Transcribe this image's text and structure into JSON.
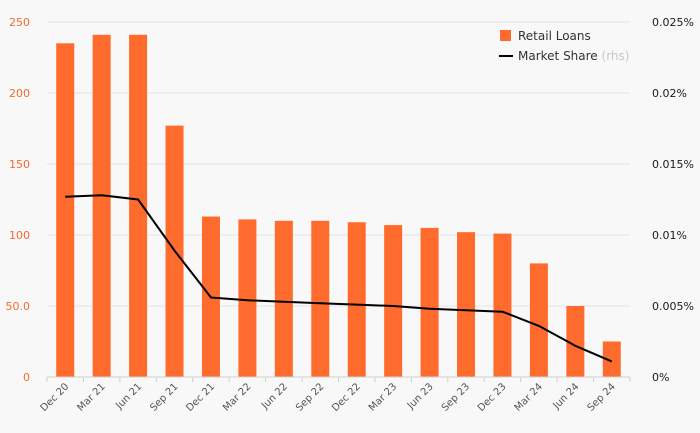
{
  "chart_data": {
    "type": "bar",
    "categories": [
      "Dec 20",
      "Mar 21",
      "Jun 21",
      "Sep 21",
      "Dec 21",
      "Mar 22",
      "Jun 22",
      "Sep 22",
      "Dec 22",
      "Mar 23",
      "Jun 23",
      "Sep 23",
      "Dec 23",
      "Mar 24",
      "Jun 24",
      "Sep 24"
    ],
    "series": [
      {
        "name": "Retail Loans",
        "type": "bar",
        "axis": "left",
        "color": "#ff6b2c",
        "values": [
          235,
          241,
          241,
          177,
          113,
          111,
          110,
          110,
          109,
          107,
          105,
          102,
          101,
          80,
          50,
          25
        ]
      },
      {
        "name": "Market Share",
        "name_suffix": "(rhs)",
        "type": "line",
        "axis": "right",
        "color": "#000000",
        "values": [
          0.0127,
          0.0128,
          0.0125,
          0.0089,
          0.0056,
          0.0054,
          0.0053,
          0.0052,
          0.0051,
          0.005,
          0.0048,
          0.0047,
          0.0046,
          0.0036,
          0.0022,
          0.0011
        ]
      }
    ],
    "y_left": {
      "ylim": [
        0,
        250
      ],
      "ticks": [
        0,
        50,
        100,
        150,
        200,
        250
      ],
      "tick_labels": [
        "0",
        "50.0",
        "100",
        "150",
        "200",
        "250"
      ],
      "label_color": "#f26b2a"
    },
    "y_right": {
      "ylim": [
        0,
        0.025
      ],
      "ticks": [
        0,
        0.005,
        0.01,
        0.015,
        0.02,
        0.025
      ],
      "tick_labels": [
        "0%",
        "0.005%",
        "0.01%",
        "0.015%",
        "0.02%",
        "0.025%"
      ]
    },
    "grid": true,
    "grid_color": "#e4e4e4",
    "legend": {
      "position": "top-right",
      "entries": [
        {
          "label": "Retail Loans",
          "suffix": "",
          "marker": "square",
          "color": "#ff6b2c"
        },
        {
          "label": "Market Share",
          "suffix": "(rhs)",
          "marker": "line",
          "color": "#000000"
        }
      ]
    },
    "title": "",
    "xlabel": "",
    "ylabel": ""
  }
}
